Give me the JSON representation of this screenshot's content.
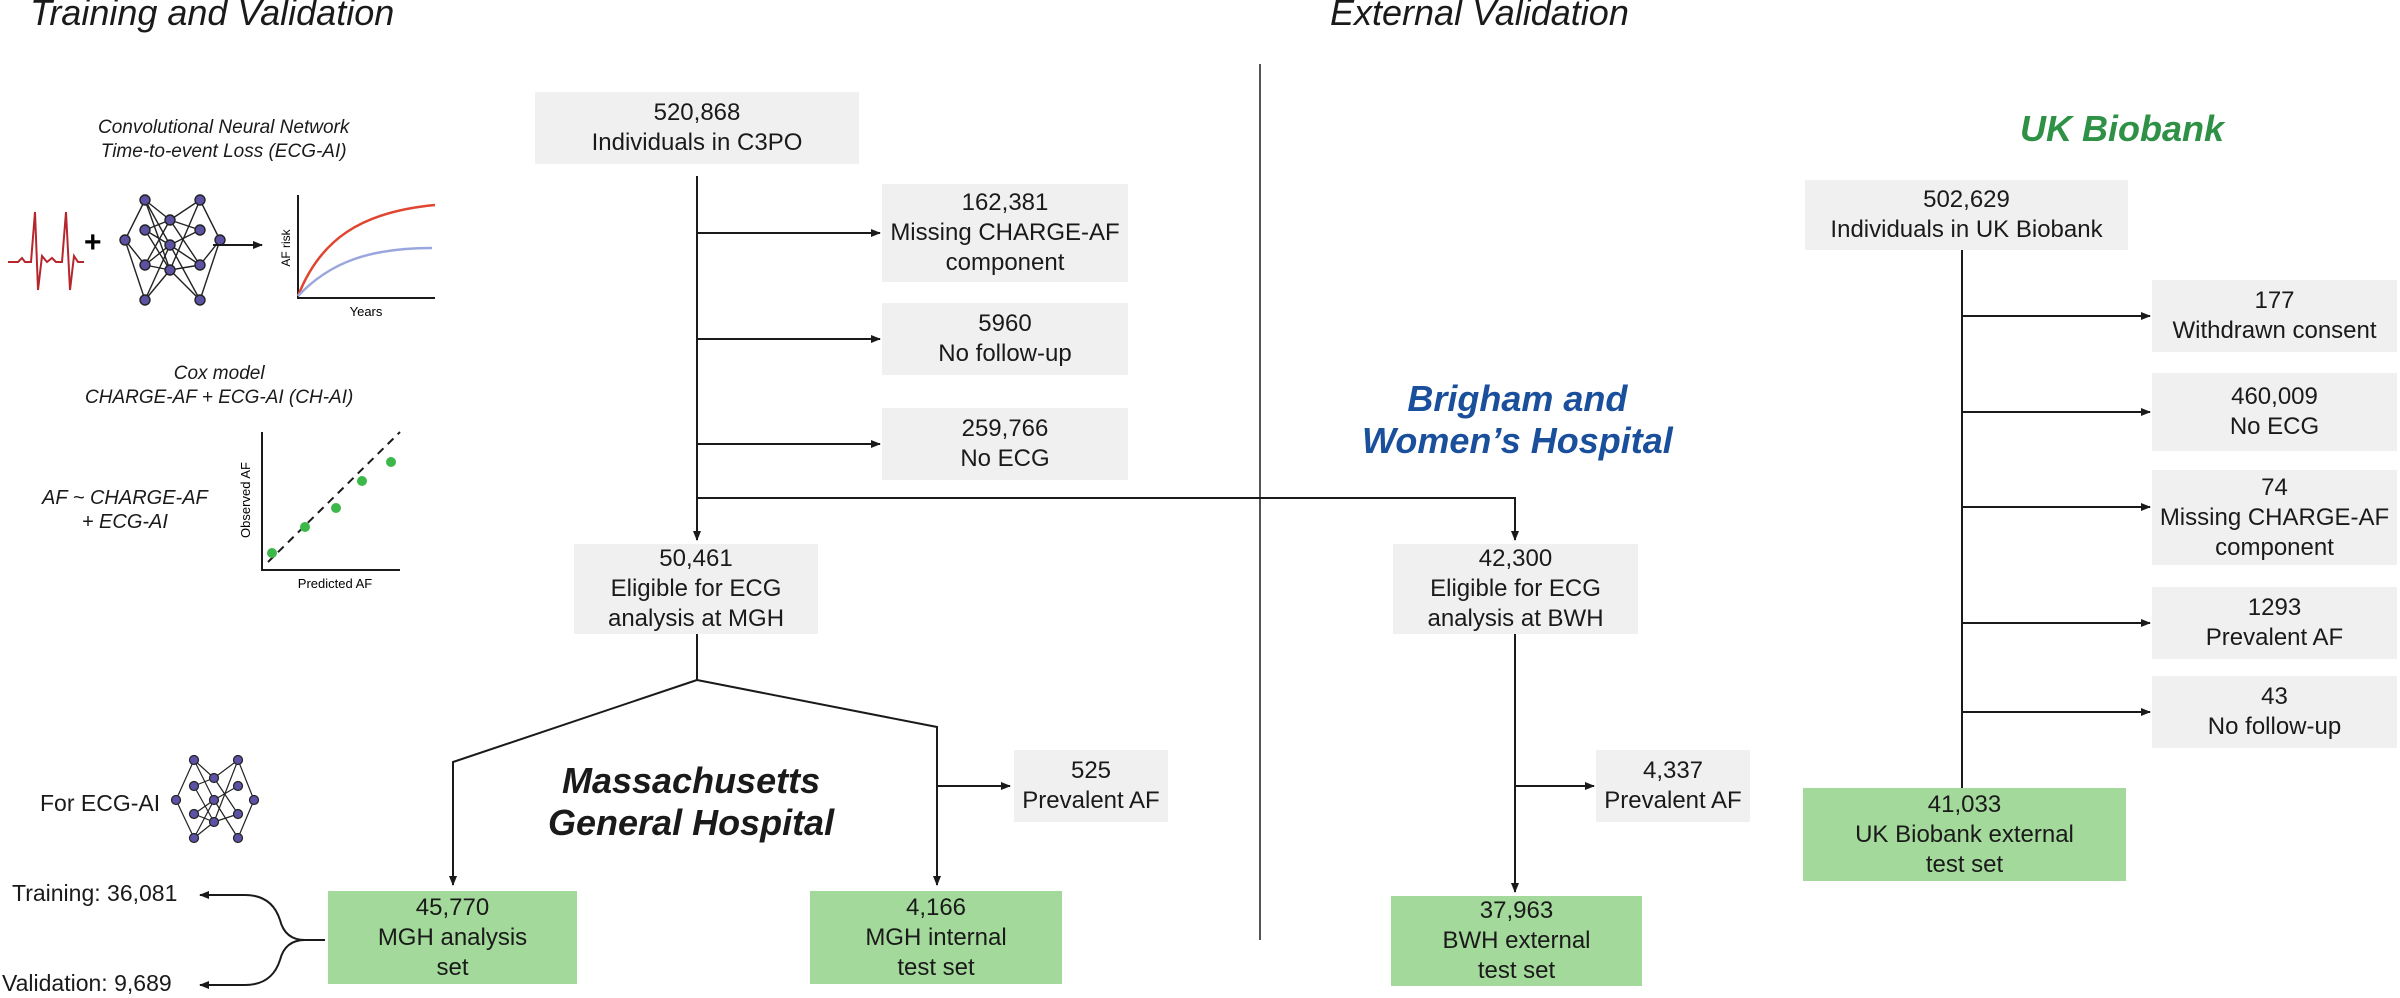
{
  "headings": {
    "training": "Training and Validation",
    "external": "External Validation"
  },
  "hospitals": {
    "mgh": [
      "Massachusetts",
      "General Hospital"
    ],
    "bwh": [
      "Brigham and",
      "Women’s Hospital"
    ],
    "ukb": "UK Biobank"
  },
  "colors": {
    "gray_box": "#f0f0f0",
    "green_box": "#a3d99a",
    "brigham_blue": "#1a4f9c",
    "biobank_green": "#2e9145",
    "ecg_red": "#b5272d",
    "network_node": "#5b52a3",
    "risk_curve_red": "#e0452f",
    "risk_curve_blue": "#9aa7de",
    "scatter_green": "#3cb84a"
  },
  "legend": {
    "cnn_note": [
      "Convolutional Neural Network",
      "Time-to-event Loss (ECG-AI)"
    ],
    "plus": "+",
    "risk_ylabel": "AF risk",
    "risk_xlabel": "Years",
    "cox_note": [
      "Cox model",
      "CHARGE-AF + ECG-AI (CH-AI)"
    ],
    "formula": [
      "AF ~ CHARGE-AF",
      "+ ECG-AI"
    ],
    "scatter_ylabel": "Observed AF",
    "scatter_xlabel": "Predicted AF",
    "for_ecg_ai": "For ECG-AI",
    "training_split": "Training: 36,081",
    "validation_split": "Validation: 9,689"
  },
  "boxes": {
    "c3po": [
      "520,868",
      "Individuals in C3PO"
    ],
    "mgh_missing": [
      "162,381",
      "Missing CHARGE-AF",
      "component"
    ],
    "mgh_nofollow": [
      "5960",
      "No follow-up"
    ],
    "mgh_noecg": [
      "259,766",
      "No ECG"
    ],
    "mgh_eligible": [
      "50,461",
      "Eligible for ECG",
      "analysis at MGH"
    ],
    "mgh_prevalent": [
      "525",
      "Prevalent AF"
    ],
    "mgh_analysis": [
      "45,770",
      "MGH analysis",
      "set"
    ],
    "mgh_internal": [
      "4,166",
      "MGH internal",
      "test set"
    ],
    "bwh_eligible": [
      "42,300",
      "Eligible for ECG",
      "analysis at BWH"
    ],
    "bwh_prevalent": [
      "4,337",
      "Prevalent AF"
    ],
    "bwh_external": [
      "37,963",
      "BWH external",
      "test set"
    ],
    "ukb_individuals": [
      "502,629",
      "Individuals in UK Biobank"
    ],
    "ukb_withdrawn": [
      "177",
      "Withdrawn consent"
    ],
    "ukb_noecg": [
      "460,009",
      "No ECG"
    ],
    "ukb_missing": [
      "74",
      "Missing CHARGE-AF",
      "component"
    ],
    "ukb_prevalent": [
      "1293",
      "Prevalent AF"
    ],
    "ukb_nofollow": [
      "43",
      "No follow-up"
    ],
    "ukb_external": [
      "41,033",
      "UK Biobank external",
      "test set"
    ]
  }
}
